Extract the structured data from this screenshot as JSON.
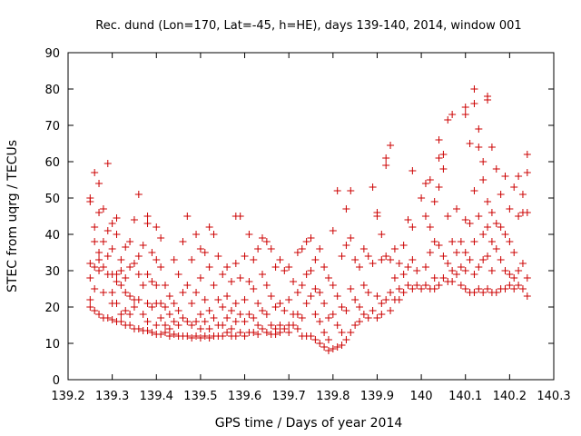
{
  "chart_data": {
    "type": "scatter",
    "title": "Rec. dund (Lon=170, Lat=-45, h=HE), days 139-140, 2014, window 001",
    "xlabel": "GPS time / Days of year 2014",
    "ylabel": "STEC from uqrg / TECUs",
    "xlim": [
      139.2,
      140.3
    ],
    "ylim": [
      0,
      90
    ],
    "xticks": [
      "139.2",
      "139.3",
      "139.4",
      "139.5",
      "139.6",
      "139.7",
      "139.8",
      "139.9",
      "140",
      "140.1",
      "140.2",
      "140.3"
    ],
    "yticks": [
      "0",
      "10",
      "20",
      "30",
      "40",
      "50",
      "60",
      "70",
      "80",
      "90"
    ],
    "grid": false,
    "legend": "none",
    "marker": "+",
    "color": "#cc0000",
    "points": [
      [
        139.25,
        49.0
      ],
      [
        139.25,
        50.0
      ],
      [
        139.25,
        32.0
      ],
      [
        139.25,
        28.0
      ],
      [
        139.25,
        22.0
      ],
      [
        139.25,
        20.0
      ],
      [
        139.26,
        57.0
      ],
      [
        139.26,
        42.0
      ],
      [
        139.26,
        38.0
      ],
      [
        139.26,
        31.0
      ],
      [
        139.26,
        25.0
      ],
      [
        139.26,
        19.0
      ],
      [
        139.27,
        54.0
      ],
      [
        139.27,
        46.0
      ],
      [
        139.27,
        35.0
      ],
      [
        139.27,
        33.0
      ],
      [
        139.27,
        30.0
      ],
      [
        139.27,
        18.0
      ],
      [
        139.28,
        47.0
      ],
      [
        139.28,
        38.0
      ],
      [
        139.28,
        31.0
      ],
      [
        139.28,
        24.0
      ],
      [
        139.28,
        17.0
      ],
      [
        139.29,
        59.5
      ],
      [
        139.29,
        41.0
      ],
      [
        139.29,
        34.0
      ],
      [
        139.29,
        29.0
      ],
      [
        139.29,
        17.0
      ],
      [
        139.3,
        43.0
      ],
      [
        139.3,
        36.0
      ],
      [
        139.3,
        29.0
      ],
      [
        139.3,
        24.0
      ],
      [
        139.3,
        21.0
      ],
      [
        139.3,
        16.5
      ],
      [
        139.31,
        44.5
      ],
      [
        139.31,
        40.0
      ],
      [
        139.31,
        29.0
      ],
      [
        139.31,
        27.0
      ],
      [
        139.31,
        21.0
      ],
      [
        139.31,
        16.0
      ],
      [
        139.32,
        33.0
      ],
      [
        139.32,
        30.0
      ],
      [
        139.32,
        26.0
      ],
      [
        139.32,
        18.0
      ],
      [
        139.32,
        16.0
      ],
      [
        139.33,
        36.5
      ],
      [
        139.33,
        28.0
      ],
      [
        139.33,
        24.0
      ],
      [
        139.33,
        19.0
      ],
      [
        139.33,
        15.0
      ],
      [
        139.34,
        38.0
      ],
      [
        139.34,
        31.0
      ],
      [
        139.34,
        23.0
      ],
      [
        139.34,
        18.0
      ],
      [
        139.34,
        15.0
      ],
      [
        139.35,
        44.0
      ],
      [
        139.35,
        32.0
      ],
      [
        139.35,
        22.0
      ],
      [
        139.35,
        20.0
      ],
      [
        139.35,
        14.0
      ],
      [
        139.36,
        51.0
      ],
      [
        139.36,
        34.0
      ],
      [
        139.36,
        29.0
      ],
      [
        139.36,
        22.0
      ],
      [
        139.36,
        14.0
      ],
      [
        139.37,
        37.0
      ],
      [
        139.37,
        26.0
      ],
      [
        139.37,
        18.0
      ],
      [
        139.37,
        13.5
      ],
      [
        139.38,
        45.0
      ],
      [
        139.38,
        43.0
      ],
      [
        139.38,
        29.0
      ],
      [
        139.38,
        21.0
      ],
      [
        139.38,
        16.0
      ],
      [
        139.38,
        13.5
      ],
      [
        139.39,
        35.0
      ],
      [
        139.39,
        27.0
      ],
      [
        139.39,
        20.0
      ],
      [
        139.39,
        13.0
      ],
      [
        139.4,
        42.0
      ],
      [
        139.4,
        33.0
      ],
      [
        139.4,
        26.0
      ],
      [
        139.4,
        21.0
      ],
      [
        139.4,
        15.0
      ],
      [
        139.4,
        12.5
      ],
      [
        139.41,
        39.0
      ],
      [
        139.41,
        31.0
      ],
      [
        139.41,
        21.0
      ],
      [
        139.41,
        17.0
      ],
      [
        139.41,
        12.5
      ],
      [
        139.42,
        26.0
      ],
      [
        139.42,
        20.0
      ],
      [
        139.42,
        15.0
      ],
      [
        139.42,
        13.0
      ],
      [
        139.43,
        23.0
      ],
      [
        139.43,
        18.0
      ],
      [
        139.43,
        14.0
      ],
      [
        139.43,
        12.0
      ],
      [
        139.44,
        33.0
      ],
      [
        139.44,
        21.0
      ],
      [
        139.44,
        16.0
      ],
      [
        139.44,
        12.5
      ],
      [
        139.45,
        29.0
      ],
      [
        139.45,
        19.0
      ],
      [
        139.45,
        15.0
      ],
      [
        139.45,
        12.0
      ],
      [
        139.46,
        38.0
      ],
      [
        139.46,
        24.0
      ],
      [
        139.46,
        17.0
      ],
      [
        139.46,
        12.0
      ],
      [
        139.47,
        45.0
      ],
      [
        139.47,
        26.0
      ],
      [
        139.47,
        16.0
      ],
      [
        139.47,
        12.0
      ],
      [
        139.48,
        33.0
      ],
      [
        139.48,
        21.0
      ],
      [
        139.48,
        15.0
      ],
      [
        139.48,
        11.5
      ],
      [
        139.49,
        40.0
      ],
      [
        139.49,
        24.0
      ],
      [
        139.49,
        16.0
      ],
      [
        139.49,
        12.0
      ],
      [
        139.5,
        36.0
      ],
      [
        139.5,
        28.0
      ],
      [
        139.5,
        18.0
      ],
      [
        139.5,
        14.0
      ],
      [
        139.5,
        11.5
      ],
      [
        139.51,
        35.0
      ],
      [
        139.51,
        22.0
      ],
      [
        139.51,
        16.0
      ],
      [
        139.51,
        12.0
      ],
      [
        139.52,
        42.0
      ],
      [
        139.52,
        31.0
      ],
      [
        139.52,
        19.0
      ],
      [
        139.52,
        14.0
      ],
      [
        139.52,
        11.5
      ],
      [
        139.53,
        40.0
      ],
      [
        139.53,
        26.0
      ],
      [
        139.53,
        17.0
      ],
      [
        139.53,
        12.0
      ],
      [
        139.54,
        34.0
      ],
      [
        139.54,
        22.0
      ],
      [
        139.54,
        15.0
      ],
      [
        139.54,
        12.0
      ],
      [
        139.55,
        29.0
      ],
      [
        139.55,
        20.0
      ],
      [
        139.55,
        15.0
      ],
      [
        139.55,
        12.0
      ],
      [
        139.56,
        31.0
      ],
      [
        139.56,
        23.0
      ],
      [
        139.56,
        17.0
      ],
      [
        139.56,
        13.0
      ],
      [
        139.57,
        27.0
      ],
      [
        139.57,
        19.0
      ],
      [
        139.57,
        14.0
      ],
      [
        139.57,
        12.0
      ],
      [
        139.58,
        45.0
      ],
      [
        139.58,
        32.0
      ],
      [
        139.58,
        21.0
      ],
      [
        139.58,
        16.0
      ],
      [
        139.58,
        12.0
      ],
      [
        139.59,
        45.0
      ],
      [
        139.59,
        28.0
      ],
      [
        139.59,
        18.0
      ],
      [
        139.59,
        13.0
      ],
      [
        139.6,
        34.0
      ],
      [
        139.6,
        22.0
      ],
      [
        139.6,
        16.0
      ],
      [
        139.6,
        12.0
      ],
      [
        139.61,
        40.0
      ],
      [
        139.61,
        27.0
      ],
      [
        139.61,
        18.0
      ],
      [
        139.61,
        13.0
      ],
      [
        139.62,
        33.0
      ],
      [
        139.62,
        25.0
      ],
      [
        139.62,
        17.0
      ],
      [
        139.62,
        13.0
      ],
      [
        139.63,
        36.0
      ],
      [
        139.63,
        21.0
      ],
      [
        139.63,
        15.0
      ],
      [
        139.63,
        12.5
      ],
      [
        139.64,
        39.0
      ],
      [
        139.64,
        29.0
      ],
      [
        139.64,
        19.0
      ],
      [
        139.64,
        14.0
      ],
      [
        139.65,
        38.0
      ],
      [
        139.65,
        26.0
      ],
      [
        139.65,
        18.0
      ],
      [
        139.65,
        13.0
      ],
      [
        139.66,
        36.0
      ],
      [
        139.66,
        23.0
      ],
      [
        139.66,
        15.0
      ],
      [
        139.66,
        12.5
      ],
      [
        139.67,
        31.0
      ],
      [
        139.67,
        20.0
      ],
      [
        139.67,
        14.0
      ],
      [
        139.67,
        12.5
      ],
      [
        139.68,
        33.0
      ],
      [
        139.68,
        21.0
      ],
      [
        139.68,
        15.0
      ],
      [
        139.68,
        13.0
      ],
      [
        139.69,
        30.0
      ],
      [
        139.69,
        19.0
      ],
      [
        139.69,
        14.0
      ],
      [
        139.7,
        31.0
      ],
      [
        139.7,
        22.0
      ],
      [
        139.7,
        15.0
      ],
      [
        139.7,
        13.0
      ],
      [
        139.71,
        27.0
      ],
      [
        139.71,
        18.0
      ],
      [
        139.71,
        15.0
      ],
      [
        139.72,
        35.0
      ],
      [
        139.72,
        24.0
      ],
      [
        139.72,
        18.0
      ],
      [
        139.72,
        14.0
      ],
      [
        139.73,
        36.0
      ],
      [
        139.73,
        26.0
      ],
      [
        139.73,
        17.0
      ],
      [
        139.73,
        12.0
      ],
      [
        139.74,
        38.0
      ],
      [
        139.74,
        29.0
      ],
      [
        139.74,
        21.0
      ],
      [
        139.74,
        12.0
      ],
      [
        139.75,
        39.0
      ],
      [
        139.75,
        30.0
      ],
      [
        139.75,
        23.0
      ],
      [
        139.75,
        12.0
      ],
      [
        139.76,
        33.0
      ],
      [
        139.76,
        25.0
      ],
      [
        139.76,
        18.0
      ],
      [
        139.76,
        11.0
      ],
      [
        139.77,
        36.0
      ],
      [
        139.77,
        24.0
      ],
      [
        139.77,
        16.0
      ],
      [
        139.77,
        10.0
      ],
      [
        139.78,
        31.0
      ],
      [
        139.78,
        21.0
      ],
      [
        139.78,
        13.0
      ],
      [
        139.78,
        9.0
      ],
      [
        139.79,
        28.0
      ],
      [
        139.79,
        17.0
      ],
      [
        139.79,
        11.0
      ],
      [
        139.79,
        8.0
      ],
      [
        139.8,
        41.0
      ],
      [
        139.8,
        26.0
      ],
      [
        139.8,
        18.0
      ],
      [
        139.8,
        8.5
      ],
      [
        139.81,
        52.0
      ],
      [
        139.81,
        23.0
      ],
      [
        139.81,
        15.0
      ],
      [
        139.81,
        9.0
      ],
      [
        139.82,
        34.0
      ],
      [
        139.82,
        20.0
      ],
      [
        139.82,
        13.0
      ],
      [
        139.82,
        9.5
      ],
      [
        139.83,
        47.0
      ],
      [
        139.83,
        37.0
      ],
      [
        139.83,
        19.0
      ],
      [
        139.83,
        11.0
      ],
      [
        139.84,
        52.0
      ],
      [
        139.84,
        39.0
      ],
      [
        139.84,
        25.0
      ],
      [
        139.84,
        13.0
      ],
      [
        139.85,
        33.0
      ],
      [
        139.85,
        22.0
      ],
      [
        139.85,
        15.0
      ],
      [
        139.86,
        31.0
      ],
      [
        139.86,
        20.0
      ],
      [
        139.86,
        16.0
      ],
      [
        139.87,
        36.0
      ],
      [
        139.87,
        26.0
      ],
      [
        139.87,
        18.0
      ],
      [
        139.88,
        34.0
      ],
      [
        139.88,
        24.0
      ],
      [
        139.88,
        17.0
      ],
      [
        139.89,
        53.0
      ],
      [
        139.89,
        32.0
      ],
      [
        139.89,
        19.0
      ],
      [
        139.9,
        46.0
      ],
      [
        139.9,
        45.0
      ],
      [
        139.9,
        23.0
      ],
      [
        139.9,
        17.0
      ],
      [
        139.91,
        40.0
      ],
      [
        139.91,
        33.0
      ],
      [
        139.91,
        21.0
      ],
      [
        139.91,
        18.0
      ],
      [
        139.92,
        61.0
      ],
      [
        139.92,
        59.0
      ],
      [
        139.92,
        34.0
      ],
      [
        139.92,
        22.0
      ],
      [
        139.93,
        64.5
      ],
      [
        139.93,
        33.0
      ],
      [
        139.93,
        24.0
      ],
      [
        139.93,
        19.0
      ],
      [
        139.94,
        36.0
      ],
      [
        139.94,
        28.0
      ],
      [
        139.94,
        22.0
      ],
      [
        139.95,
        32.0
      ],
      [
        139.95,
        25.0
      ],
      [
        139.95,
        22.0
      ],
      [
        139.96,
        37.0
      ],
      [
        139.96,
        29.0
      ],
      [
        139.96,
        24.0
      ],
      [
        139.97,
        44.0
      ],
      [
        139.97,
        31.0
      ],
      [
        139.97,
        26.0
      ],
      [
        139.98,
        57.5
      ],
      [
        139.98,
        42.0
      ],
      [
        139.98,
        33.0
      ],
      [
        139.98,
        25.0
      ],
      [
        139.99,
        30.0
      ],
      [
        139.99,
        26.0
      ],
      [
        140.0,
        50.0
      ],
      [
        140.0,
        25.0
      ],
      [
        140.01,
        54.0
      ],
      [
        140.01,
        45.0
      ],
      [
        140.01,
        31.0
      ],
      [
        140.01,
        26.0
      ],
      [
        140.02,
        55.0
      ],
      [
        140.02,
        42.0
      ],
      [
        140.02,
        35.0
      ],
      [
        140.02,
        25.0
      ],
      [
        140.03,
        49.0
      ],
      [
        140.03,
        38.0
      ],
      [
        140.03,
        28.0
      ],
      [
        140.03,
        25.0
      ],
      [
        140.04,
        66.0
      ],
      [
        140.04,
        61.0
      ],
      [
        140.04,
        53.0
      ],
      [
        140.04,
        37.0
      ],
      [
        140.04,
        26.0
      ],
      [
        140.05,
        62.0
      ],
      [
        140.05,
        58.0
      ],
      [
        140.05,
        34.0
      ],
      [
        140.05,
        28.0
      ],
      [
        140.06,
        71.5
      ],
      [
        140.06,
        45.0
      ],
      [
        140.06,
        32.0
      ],
      [
        140.06,
        27.0
      ],
      [
        140.07,
        73.0
      ],
      [
        140.07,
        38.0
      ],
      [
        140.07,
        30.0
      ],
      [
        140.07,
        27.0
      ],
      [
        140.08,
        47.0
      ],
      [
        140.08,
        35.0
      ],
      [
        140.08,
        29.0
      ],
      [
        140.09,
        38.0
      ],
      [
        140.09,
        31.0
      ],
      [
        140.09,
        26.0
      ],
      [
        140.1,
        75.0
      ],
      [
        140.1,
        73.0
      ],
      [
        140.1,
        44.0
      ],
      [
        140.1,
        35.0
      ],
      [
        140.1,
        30.0
      ],
      [
        140.1,
        25.0
      ],
      [
        140.11,
        65.0
      ],
      [
        140.11,
        43.0
      ],
      [
        140.11,
        33.0
      ],
      [
        140.11,
        24.0
      ],
      [
        140.12,
        80.0
      ],
      [
        140.12,
        76.0
      ],
      [
        140.12,
        52.0
      ],
      [
        140.12,
        38.0
      ],
      [
        140.12,
        29.0
      ],
      [
        140.12,
        24.0
      ],
      [
        140.13,
        69.0
      ],
      [
        140.13,
        64.0
      ],
      [
        140.13,
        45.0
      ],
      [
        140.13,
        31.0
      ],
      [
        140.13,
        25.0
      ],
      [
        140.14,
        60.0
      ],
      [
        140.14,
        55.0
      ],
      [
        140.14,
        40.0
      ],
      [
        140.14,
        33.0
      ],
      [
        140.14,
        24.0
      ],
      [
        140.15,
        78.0
      ],
      [
        140.15,
        77.0
      ],
      [
        140.15,
        49.0
      ],
      [
        140.15,
        42.0
      ],
      [
        140.15,
        34.0
      ],
      [
        140.15,
        25.0
      ],
      [
        140.16,
        64.0
      ],
      [
        140.16,
        46.0
      ],
      [
        140.16,
        38.0
      ],
      [
        140.16,
        30.0
      ],
      [
        140.16,
        24.0
      ],
      [
        140.17,
        58.0
      ],
      [
        140.17,
        43.0
      ],
      [
        140.17,
        36.0
      ],
      [
        140.17,
        24.0
      ],
      [
        140.18,
        51.0
      ],
      [
        140.18,
        42.0
      ],
      [
        140.18,
        33.0
      ],
      [
        140.18,
        25.0
      ],
      [
        140.19,
        56.0
      ],
      [
        140.19,
        40.0
      ],
      [
        140.19,
        30.0
      ],
      [
        140.19,
        25.0
      ],
      [
        140.2,
        47.0
      ],
      [
        140.2,
        38.0
      ],
      [
        140.2,
        29.0
      ],
      [
        140.2,
        26.0
      ],
      [
        140.21,
        53.0
      ],
      [
        140.21,
        35.0
      ],
      [
        140.21,
        28.0
      ],
      [
        140.21,
        25.0
      ],
      [
        140.22,
        56.0
      ],
      [
        140.22,
        45.0
      ],
      [
        140.22,
        30.0
      ],
      [
        140.22,
        26.0
      ],
      [
        140.23,
        51.0
      ],
      [
        140.23,
        46.0
      ],
      [
        140.23,
        32.0
      ],
      [
        140.23,
        25.0
      ],
      [
        140.24,
        62.0
      ],
      [
        140.24,
        57.0
      ],
      [
        140.24,
        46.0
      ],
      [
        140.24,
        28.0
      ],
      [
        140.24,
        23.0
      ]
    ]
  }
}
